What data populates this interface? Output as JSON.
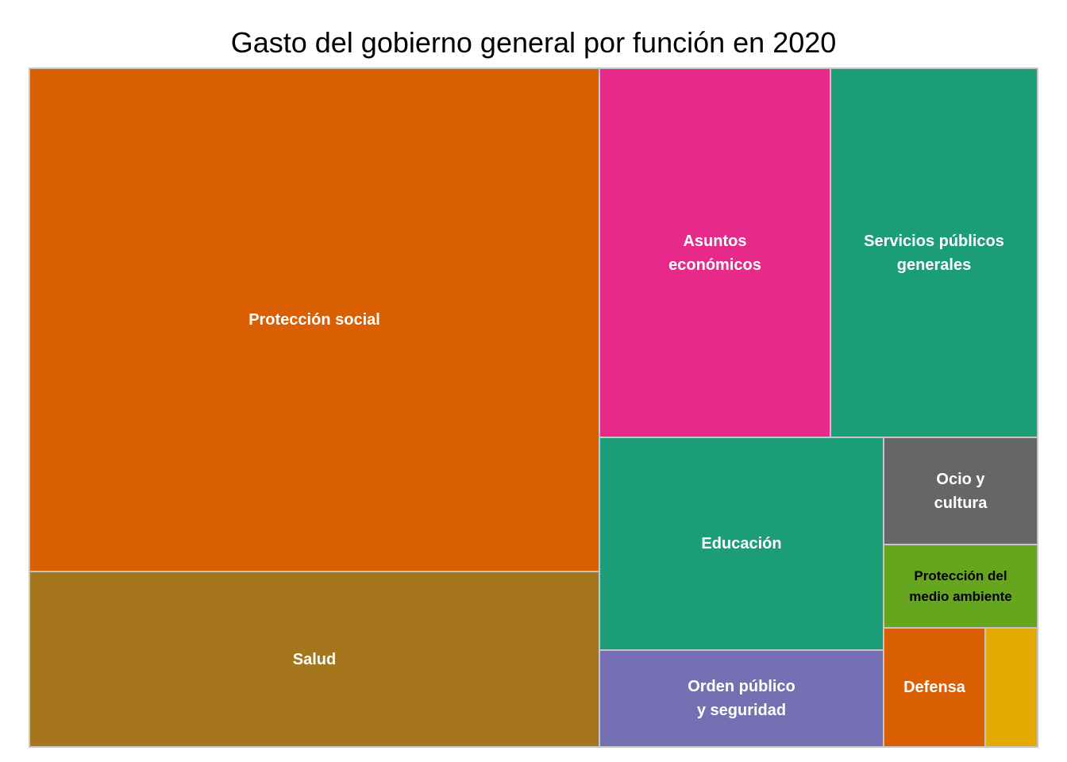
{
  "chart_data": {
    "type": "treemap",
    "title": "Gasto del gobierno general por función en 2020",
    "items": [
      {
        "label": "Protección social",
        "value": 20.0,
        "color": "#d95f02",
        "text_color": "#ffffff"
      },
      {
        "label": "Salud",
        "value": 6.9,
        "color": "#a6761d",
        "text_color": "#ffffff"
      },
      {
        "label": "Asuntos económicos",
        "value": 5.9,
        "color": "#e7298a",
        "text_color": "#ffffff"
      },
      {
        "label": "Servicios públicos generales",
        "value": 5.3,
        "color": "#1b9e77",
        "text_color": "#ffffff"
      },
      {
        "label": "Educación",
        "value": 4.2,
        "color": "#1b9e77",
        "text_color": "#ffffff"
      },
      {
        "label": "Orden público y seguridad",
        "value": 1.8,
        "color": "#7570b3",
        "text_color": "#ffffff"
      },
      {
        "label": "Ocio y cultura",
        "value": 1.1,
        "color": "#666666",
        "text_color": "#ffffff"
      },
      {
        "label": "Protección del medio ambiente",
        "value": 0.9,
        "color": "#66a61e",
        "text_color": "#000000"
      },
      {
        "label": "Defensa",
        "value": 1.0,
        "color": "#d95f02",
        "text_color": "#ffffff"
      },
      {
        "label": "",
        "value": 0.5,
        "color": "#e6ab02",
        "text_color": "#ffffff"
      }
    ]
  }
}
